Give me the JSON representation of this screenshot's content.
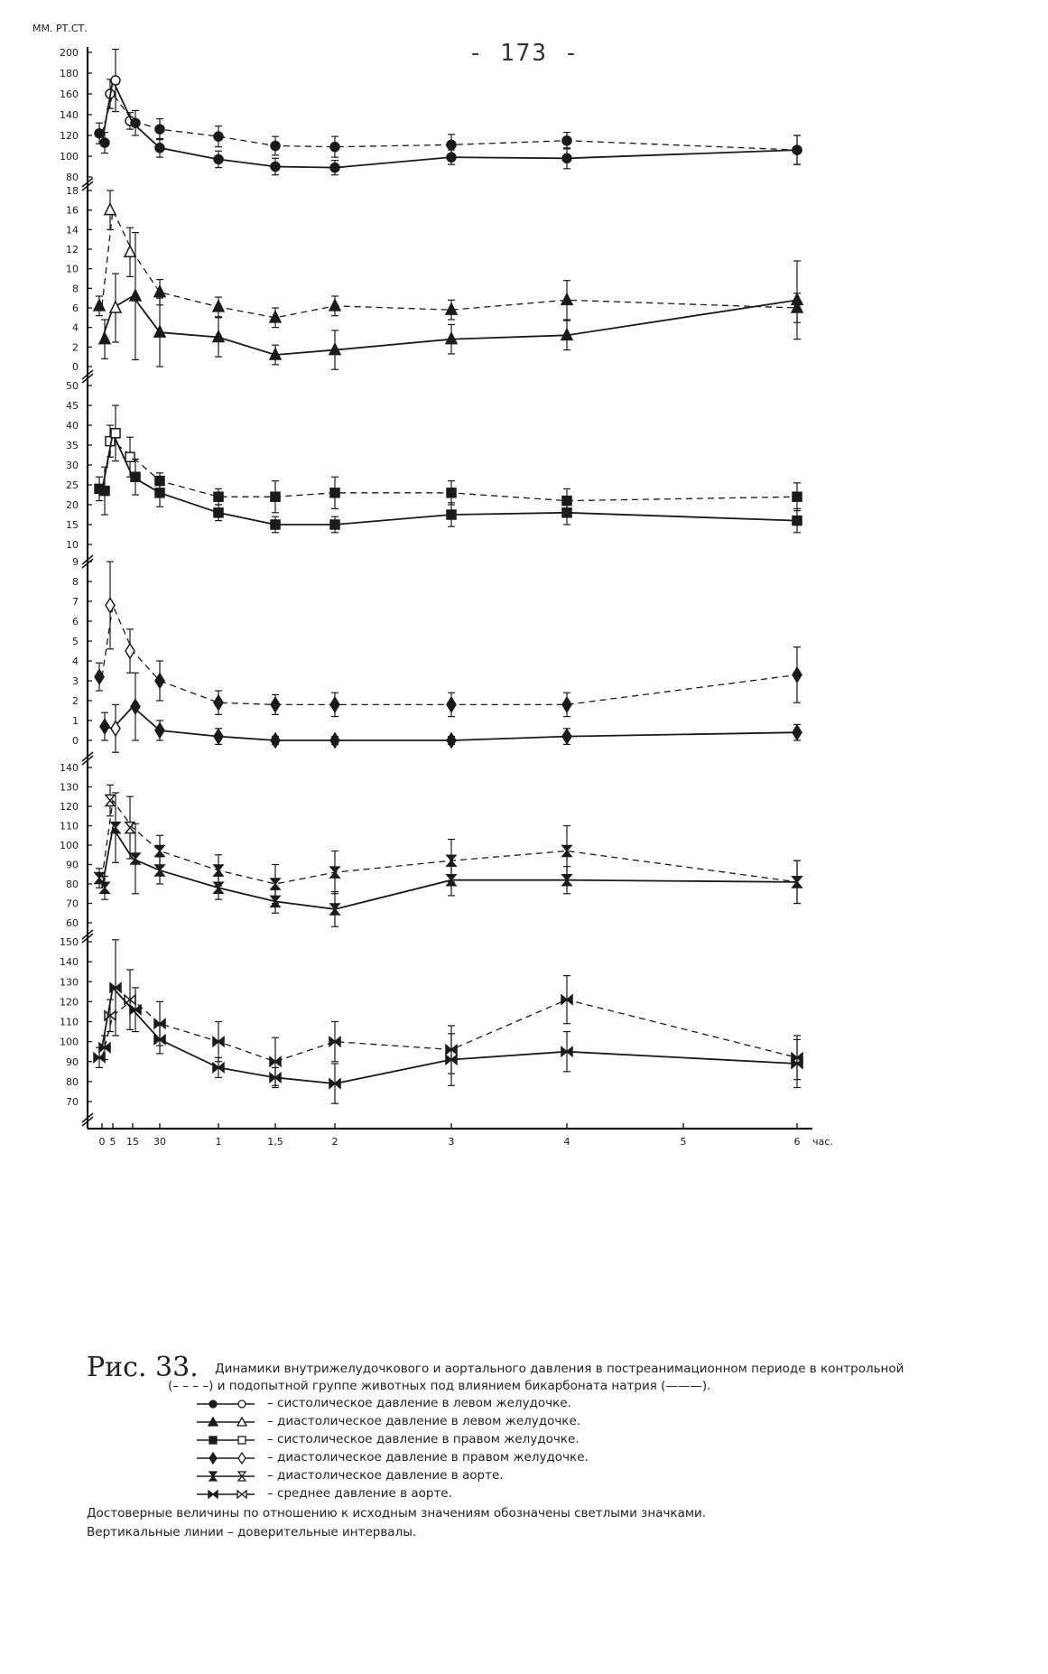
{
  "page_number": "- 173 -",
  "caption": {
    "figure_label": "Рис. 33.",
    "text_line1": "Динамики внутрижелудочкового и аортального давления в постреанимационном периоде в контрольной",
    "text_line2": "(– – – –) и подопытной группе животных под влиянием бикарбоната натрия (———).",
    "legend": [
      {
        "marker": "circle",
        "label": "– систолическое давление в левом желудочке."
      },
      {
        "marker": "triangle",
        "label": "– диастолическое давление в левом желудочке."
      },
      {
        "marker": "square",
        "label": "– систолическое давление в правом желудочке."
      },
      {
        "marker": "diamond",
        "label": "– диастолическое давление в правом желудочке."
      },
      {
        "marker": "hourglass",
        "label": "– диастолическое давление в аорте."
      },
      {
        "marker": "bowtie",
        "label": "– среднее давление в аорте."
      }
    ],
    "note1": "Достоверные величины по отношению к исходным значениям обозначены светлыми значками.",
    "note2": "Вертикальные линии – доверительные интервалы."
  },
  "chart_data": {
    "type": "line",
    "y_unit_label": "ММ. РТ.СТ.",
    "x_unit_label": "час.",
    "x_tick_labels": [
      "0",
      "5",
      "15",
      "30",
      "1",
      "1,5",
      "2",
      "3",
      "4",
      "5",
      "6"
    ],
    "x_tick_positions_hours": [
      0,
      0.083,
      0.25,
      0.5,
      1,
      1.5,
      2,
      3,
      4,
      5,
      6
    ],
    "panels": [
      {
        "name": "LV systolic",
        "marker": "circle",
        "y_ticks": [
          80,
          100,
          120,
          140,
          160,
          180,
          200
        ],
        "ylim": [
          78,
          205
        ],
        "series": [
          {
            "group": "control",
            "style": "dashed",
            "x": [
              0,
              0.083,
              0.25,
              0.5,
              1,
              1.5,
              2,
              3,
              4,
              6
            ],
            "y": [
              122,
              160,
              134,
              126,
              119,
              110,
              109,
              111,
              115,
              106
            ],
            "err": [
              10,
              14,
              8,
              10,
              10,
              9,
              10,
              10,
              8,
              14
            ]
          },
          {
            "group": "experimental",
            "style": "solid",
            "x": [
              0,
              0.083,
              0.25,
              0.5,
              1,
              1.5,
              2,
              3,
              4,
              6
            ],
            "y": [
              113,
              173,
              132,
              108,
              97,
              90,
              89,
              99,
              98,
              106
            ],
            "err": [
              10,
              30,
              12,
              9,
              8,
              8,
              7,
              7,
              10,
              14
            ]
          }
        ]
      },
      {
        "name": "LV diastolic",
        "marker": "triangle",
        "y_ticks": [
          0,
          2,
          4,
          6,
          8,
          10,
          12,
          14,
          16,
          18
        ],
        "ylim": [
          -0.5,
          18.5
        ],
        "series": [
          {
            "group": "control",
            "style": "dashed",
            "x": [
              0,
              0.083,
              0.25,
              0.5,
              1,
              1.5,
              2,
              3,
              4,
              6
            ],
            "y": [
              6.2,
              16,
              11.7,
              7.6,
              6.1,
              5,
              6.2,
              5.8,
              6.8,
              6
            ],
            "err": [
              1,
              2,
              2.5,
              1.3,
              1,
              1,
              1,
              1,
              2,
              1.5
            ]
          },
          {
            "group": "experimental",
            "style": "solid",
            "x": [
              0,
              0.083,
              0.25,
              0.5,
              1,
              1.5,
              2,
              3,
              4,
              6
            ],
            "y": [
              2.8,
              6,
              7.2,
              3.5,
              3,
              1.2,
              1.7,
              2.8,
              3.2,
              6.8
            ],
            "err": [
              2,
              3.5,
              6.5,
              3.5,
              2,
              1,
              2,
              1.5,
              1.5,
              4
            ]
          }
        ]
      },
      {
        "name": "RV systolic",
        "marker": "square",
        "y_ticks": [
          10,
          15,
          20,
          25,
          30,
          35,
          40,
          45,
          50
        ],
        "ylim": [
          9,
          51
        ],
        "series": [
          {
            "group": "control",
            "style": "dashed",
            "x": [
              0,
              0.083,
              0.25,
              0.5,
              1,
              1.5,
              2,
              3,
              4,
              6
            ],
            "y": [
              24,
              36,
              32,
              26,
              22,
              22,
              23,
              23,
              21,
              22
            ],
            "err": [
              3,
              4,
              5,
              2,
              2,
              4,
              4,
              3,
              3,
              3.5
            ]
          },
          {
            "group": "experimental",
            "style": "solid",
            "x": [
              0,
              0.083,
              0.25,
              0.5,
              1,
              1.5,
              2,
              3,
              4,
              6
            ],
            "y": [
              23.5,
              38,
              27,
              23,
              18,
              15,
              15,
              17.5,
              18,
              16
            ],
            "err": [
              6,
              7,
              4.5,
              3.5,
              2,
              2,
              2,
              3,
              3,
              3
            ]
          }
        ]
      },
      {
        "name": "RV diastolic",
        "marker": "diamond",
        "y_ticks": [
          0,
          1,
          2,
          3,
          4,
          5,
          6,
          7,
          8,
          9
        ],
        "ylim": [
          -0.3,
          9.3
        ],
        "series": [
          {
            "group": "control",
            "style": "dashed",
            "x": [
              0,
              0.083,
              0.25,
              0.5,
              1,
              1.5,
              2,
              3,
              4,
              6
            ],
            "y": [
              3.2,
              6.8,
              4.5,
              3,
              1.9,
              1.8,
              1.8,
              1.8,
              1.8,
              3.3
            ],
            "err": [
              0.7,
              2.2,
              1.1,
              1,
              0.6,
              0.5,
              0.6,
              0.6,
              0.6,
              1.4
            ]
          },
          {
            "group": "experimental",
            "style": "solid",
            "x": [
              0,
              0.083,
              0.25,
              0.5,
              1,
              1.5,
              2,
              3,
              4,
              6
            ],
            "y": [
              0.7,
              0.6,
              1.7,
              0.5,
              0.2,
              0,
              0,
              0,
              0.2,
              0.4
            ],
            "err": [
              0.7,
              1.2,
              1.7,
              0.5,
              0.4,
              0.2,
              0.2,
              0.2,
              0.4,
              0.4
            ]
          }
        ]
      },
      {
        "name": "Aortic diastolic",
        "marker": "hourglass",
        "y_ticks": [
          60,
          70,
          80,
          90,
          100,
          110,
          120,
          130,
          140
        ],
        "ylim": [
          58,
          143
        ],
        "series": [
          {
            "group": "control",
            "style": "dashed",
            "x": [
              0,
              0.083,
              0.25,
              0.5,
              1,
              1.5,
              2,
              3,
              4,
              6
            ],
            "y": [
              83,
              123,
              109,
              97,
              87,
              80,
              86,
              92,
              97,
              81
            ],
            "err": [
              5,
              8,
              16,
              8,
              8,
              10,
              11,
              11,
              13,
              11
            ]
          },
          {
            "group": "experimental",
            "style": "solid",
            "x": [
              0,
              0.083,
              0.25,
              0.5,
              1,
              1.5,
              2,
              3,
              4,
              6
            ],
            "y": [
              78,
              109,
              93,
              87,
              78,
              71,
              67,
              82,
              82,
              81
            ],
            "err": [
              6,
              18,
              18,
              7,
              6,
              6,
              9,
              8,
              7,
              11
            ]
          }
        ]
      },
      {
        "name": "Aortic mean",
        "marker": "bowtie",
        "y_ticks": [
          70,
          80,
          90,
          100,
          110,
          120,
          130,
          140,
          150
        ],
        "ylim": [
          64,
          153
        ],
        "series": [
          {
            "group": "control",
            "style": "dashed",
            "x": [
              0,
              0.083,
              0.25,
              0.5,
              1,
              1.5,
              2,
              3,
              4,
              6
            ],
            "y": [
              92,
              113,
              121,
              109,
              100,
              90,
              100,
              96,
              121,
              92
            ],
            "err": [
              5,
              8,
              15,
              11,
              10,
              12,
              10,
              12,
              12,
              11
            ]
          },
          {
            "group": "experimental",
            "style": "solid",
            "x": [
              0,
              0.083,
              0.25,
              0.5,
              1,
              1.5,
              2,
              3,
              4,
              6
            ],
            "y": [
              97,
              127,
              116,
              101,
              87,
              82,
              79,
              91,
              95,
              89
            ],
            "err": [
              6,
              24,
              11,
              7,
              5,
              5,
              10,
              13,
              10,
              12
            ]
          }
        ]
      }
    ]
  }
}
